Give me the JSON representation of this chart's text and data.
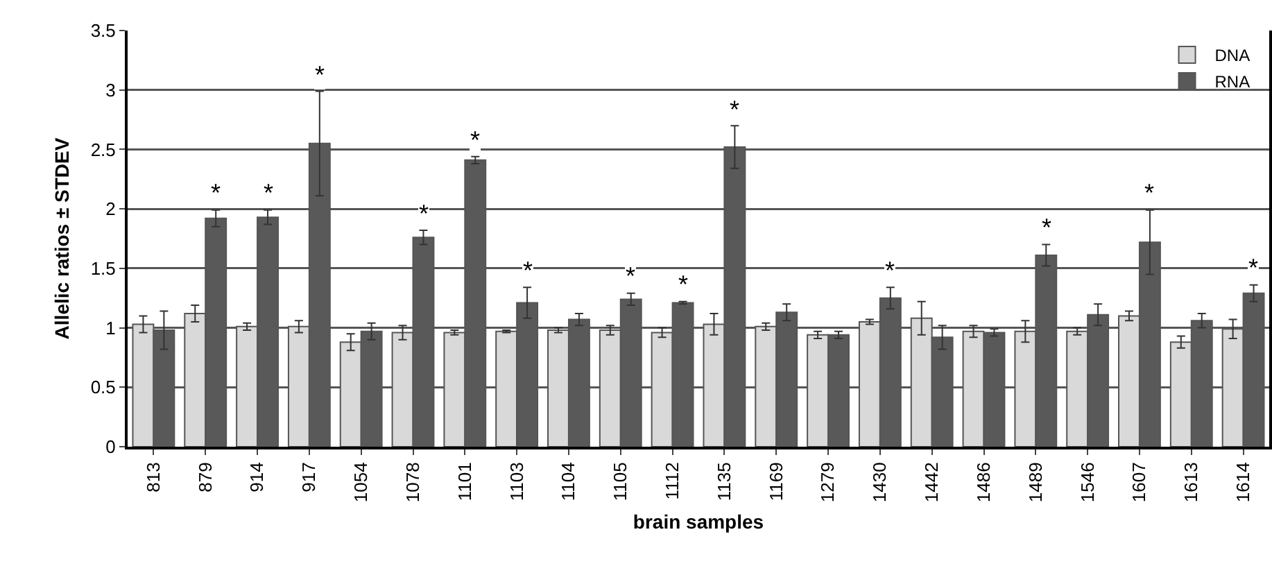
{
  "chart_data": {
    "type": "bar",
    "xlabel": "brain samples",
    "ylabel": "Allelic ratios ± STDEV",
    "categories": [
      "813",
      "879",
      "914",
      "917",
      "1054",
      "1078",
      "1101",
      "1103",
      "1104",
      "1105",
      "1112",
      "1135",
      "1169",
      "1279",
      "1430",
      "1442",
      "1486",
      "1489",
      "1546",
      "1607",
      "1613",
      "1614"
    ],
    "series": [
      {
        "name": "DNA",
        "color": "#d9d9d9",
        "values": [
          1.03,
          1.12,
          1.01,
          1.01,
          0.88,
          0.96,
          0.96,
          0.97,
          0.98,
          0.98,
          0.96,
          1.03,
          1.01,
          0.94,
          1.05,
          1.08,
          0.97,
          0.97,
          0.97,
          1.1,
          0.88,
          0.99
        ],
        "errors": [
          0.07,
          0.07,
          0.03,
          0.05,
          0.07,
          0.06,
          0.02,
          0.01,
          0.02,
          0.04,
          0.04,
          0.09,
          0.03,
          0.03,
          0.02,
          0.14,
          0.05,
          0.09,
          0.03,
          0.04,
          0.05,
          0.08
        ]
      },
      {
        "name": "RNA",
        "color": "#595959",
        "values": [
          0.98,
          1.92,
          1.93,
          2.55,
          0.97,
          1.76,
          2.41,
          1.21,
          1.07,
          1.24,
          1.21,
          2.52,
          1.13,
          0.94,
          1.25,
          0.92,
          0.96,
          1.61,
          1.11,
          1.72,
          1.06,
          1.29
        ],
        "errors": [
          0.16,
          0.07,
          0.06,
          0.44,
          0.07,
          0.06,
          0.03,
          0.13,
          0.05,
          0.05,
          0.01,
          0.18,
          0.07,
          0.03,
          0.09,
          0.1,
          0.03,
          0.09,
          0.09,
          0.27,
          0.06,
          0.07
        ]
      }
    ],
    "annotations": [
      {
        "text": "*",
        "x": "879",
        "y": 1.92
      },
      {
        "text": "*",
        "x": "914",
        "y": 1.93
      },
      {
        "text": "*",
        "x": "917",
        "y": 2.55
      },
      {
        "text": "*",
        "x": "1078",
        "y": 1.76
      },
      {
        "text": "*",
        "x": "1101",
        "y": 2.41
      },
      {
        "text": "*",
        "x": "1103",
        "y": 1.21
      },
      {
        "text": "*",
        "x": "1105",
        "y": 1.24
      },
      {
        "text": "*",
        "x": "1112",
        "y": 1.21
      },
      {
        "text": "*",
        "x": "1135",
        "y": 2.52
      },
      {
        "text": "*",
        "x": "1430",
        "y": 1.25
      },
      {
        "text": "*",
        "x": "1489",
        "y": 1.61
      },
      {
        "text": "*",
        "x": "1607",
        "y": 1.72
      },
      {
        "text": "*",
        "x": "1614",
        "y": 1.29
      }
    ],
    "ylim": [
      0,
      3.5
    ],
    "yticks": [
      0,
      0.5,
      1,
      1.5,
      2,
      2.5,
      3,
      3.5
    ],
    "grid": "y",
    "legend": "top right"
  }
}
